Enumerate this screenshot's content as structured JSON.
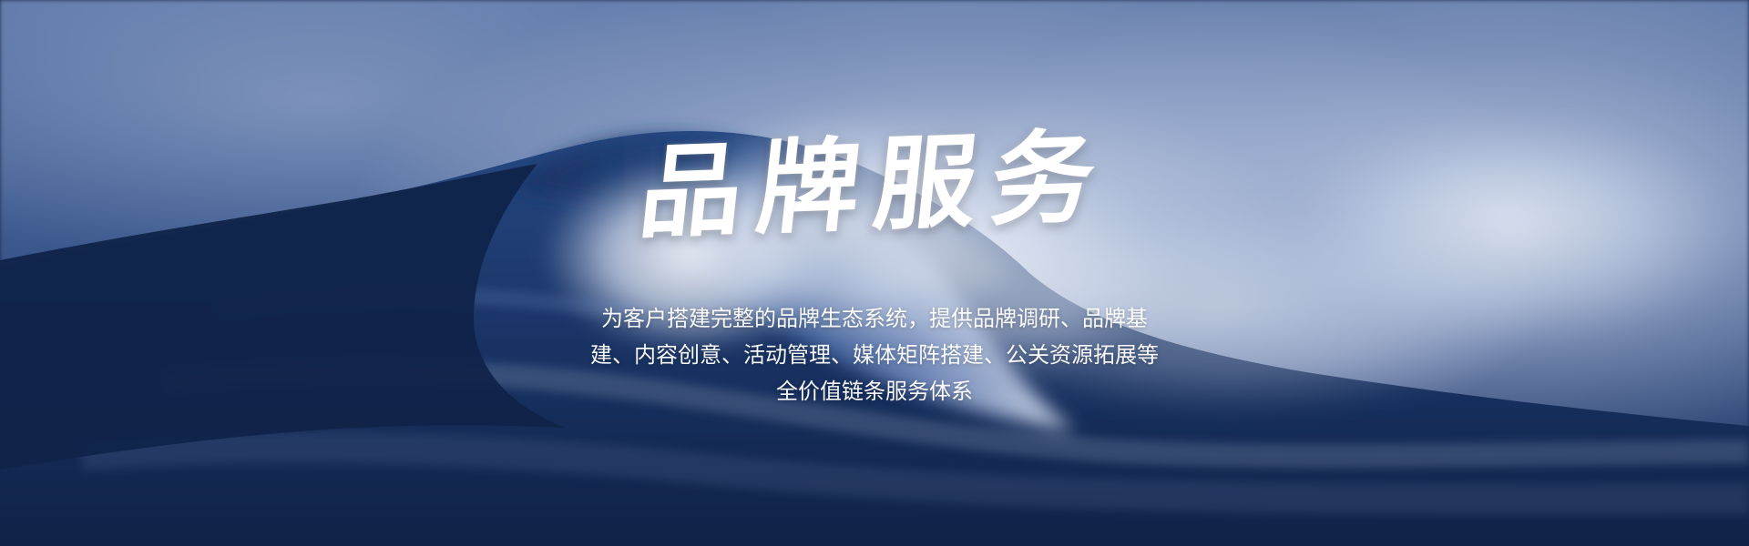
{
  "banner": {
    "title": "品牌服务",
    "description_lines": [
      "为客户搭建完整的品牌生态系统，提供品牌调研、品牌基",
      "建、内容创意、活动管理、媒体矩阵搭建、公关资源拓展等",
      "全价值链条服务体系"
    ]
  },
  "colors": {
    "deep_sea": "#1d315c",
    "wave_foam": "#dfe7f5",
    "text": "#ffffff"
  }
}
